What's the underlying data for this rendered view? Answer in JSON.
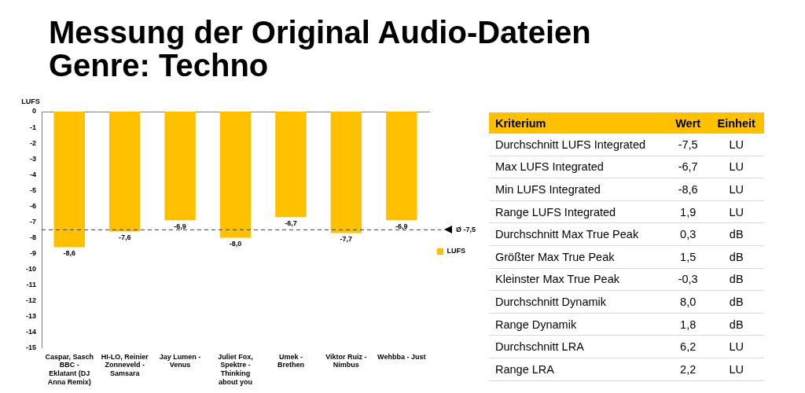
{
  "chart_data": [
    {
      "type": "bar",
      "title": "Messung der Original Audio-Dateien\nGenre: Techno",
      "ylabel": "LUFS",
      "categories": [
        "Caspar, Sasch BBC - Eklatant (DJ Anna Remix)",
        "HI-LO, Reinier Zonneveld - Samsara",
        "Jay Lumen - Venus",
        "Juliet Fox, Spektre - Thinking about you",
        "Umek - Brethen",
        "Viktor Ruiz - Nimbus",
        "Wehbba - Just"
      ],
      "series": [
        {
          "name": "LUFS",
          "color": "#ffc000",
          "values": [
            -8.6,
            -7.6,
            -6.9,
            -8.0,
            -6.7,
            -7.7,
            -6.9
          ],
          "value_labels": [
            "-8,6",
            "-7,6",
            "-6,9",
            "-8,0",
            "-6,7",
            "-7,7",
            "-6,9"
          ]
        }
      ],
      "ylim": [
        -15,
        0
      ],
      "yticks": [
        0,
        -1,
        -2,
        -3,
        -4,
        -5,
        -6,
        -7,
        -8,
        -9,
        -10,
        -11,
        -12,
        -13,
        -14,
        -15
      ],
      "ref_lines": [
        {
          "axis": "y",
          "value": -7.5,
          "label": "Ø -7,5",
          "color": "#404040",
          "line_style": "dashed"
        }
      ],
      "grid": false,
      "legend": "right"
    },
    {
      "type": "other",
      "annotations": [
        "Kriterium",
        "Wert",
        "Einheit",
        "Durchschnitt LUFS Integrated",
        "-7,5",
        "LU",
        "Max LUFS Integrated",
        "-6,7",
        "LU",
        "Min LUFS Integrated",
        "-8,6",
        "LU",
        "Range LUFS Integrated",
        "1,9",
        "LU",
        "Durchschnitt Max True Peak",
        "0,3",
        "dB",
        "Größter Max True Peak",
        "1,5",
        "dB",
        "Kleinster Max True Peak",
        "-0,3",
        "dB",
        "Durchschnitt Dynamik",
        "8,0",
        "dB",
        "Range Dynamik",
        "1,8",
        "dB",
        "Durchschnitt LRA",
        "6,2",
        "LU",
        "Range LRA",
        "2,2",
        "LU"
      ],
      "color": "#ffc000"
    }
  ]
}
